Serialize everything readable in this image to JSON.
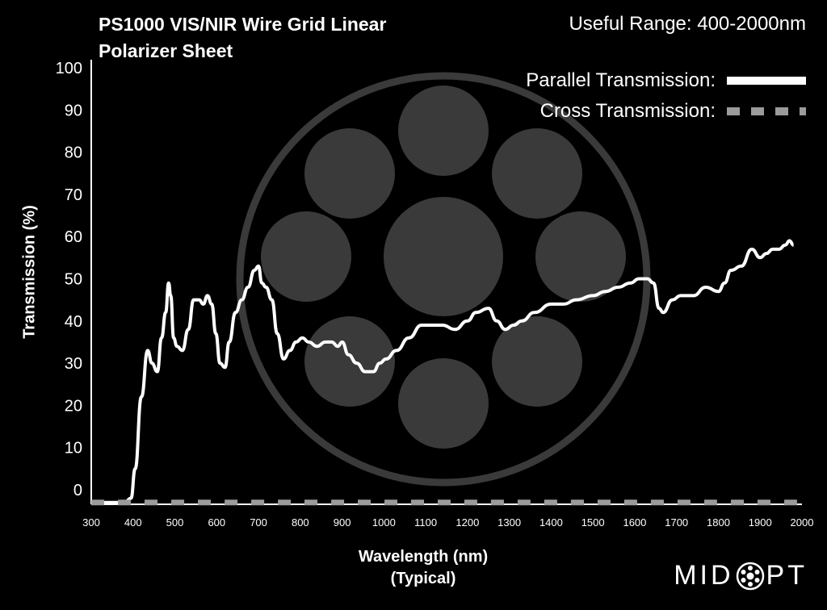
{
  "header": {
    "title_line1": "PS1000 VIS/NIR Wire Grid Linear",
    "title_line2": "Polarizer Sheet",
    "useful_range": "Useful Range: 400-2000nm"
  },
  "legend": {
    "parallel_label": "Parallel Transmission:",
    "cross_label": "Cross Transmission:"
  },
  "brand": {
    "prefix": "MID",
    "suffix": "PT"
  },
  "colors": {
    "background": "#000000",
    "parallel": "#ffffff",
    "cross": "#9b9b9b",
    "watermark": "#3a3a3a"
  },
  "chart_data": {
    "type": "line",
    "title": "PS1000 VIS/NIR Wire Grid Linear Polarizer Sheet",
    "xlabel": "Wavelength (nm)",
    "xlabel_sub": "(Typical)",
    "ylabel": "Transmission (%)",
    "xlim": [
      300,
      2000
    ],
    "ylim": [
      -3,
      100
    ],
    "xticks": [
      300,
      400,
      500,
      600,
      700,
      800,
      900,
      1000,
      1100,
      1200,
      1300,
      1400,
      1500,
      1600,
      1700,
      1800,
      1900,
      2000
    ],
    "yticks": [
      0,
      10,
      20,
      30,
      40,
      50,
      60,
      70,
      80,
      90,
      100
    ],
    "grid": false,
    "legend_position": "top-right",
    "series": [
      {
        "name": "Parallel Transmission",
        "style": "solid",
        "x": [
          300,
          380,
          395,
          405,
          420,
          435,
          445,
          458,
          468,
          478,
          485,
          490,
          497,
          505,
          518,
          532,
          545,
          558,
          568,
          578,
          588,
          598,
          608,
          620,
          630,
          645,
          660,
          675,
          690,
          700,
          708,
          718,
          732,
          745,
          760,
          775,
          790,
          805,
          820,
          840,
          860,
          875,
          890,
          900,
          915,
          935,
          955,
          975,
          990,
          1005,
          1030,
          1060,
          1090,
          1110,
          1140,
          1170,
          1200,
          1220,
          1250,
          1270,
          1290,
          1310,
          1330,
          1360,
          1400,
          1430,
          1460,
          1500,
          1530,
          1560,
          1590,
          1610,
          1630,
          1645,
          1658,
          1668,
          1690,
          1710,
          1740,
          1770,
          1800,
          1815,
          1830,
          1855,
          1880,
          1900,
          1915,
          1930,
          1945,
          1960,
          1970,
          1980
        ],
        "values": [
          -3,
          -3,
          -2,
          5,
          22,
          33,
          30,
          28,
          36,
          42,
          49,
          46,
          36,
          34,
          33,
          38,
          45,
          45,
          44,
          46,
          44,
          37,
          30,
          29,
          35,
          42,
          45,
          48,
          52,
          53,
          49,
          48,
          45,
          37,
          31,
          33,
          35,
          36,
          35,
          34,
          35,
          35,
          34,
          35,
          32,
          30,
          28,
          28,
          30,
          31,
          33,
          36,
          39,
          39,
          39,
          38,
          40,
          42,
          43,
          40,
          38,
          39,
          40,
          42,
          44,
          44,
          45,
          46,
          47,
          48,
          49,
          50,
          50,
          49,
          43,
          42,
          45,
          46,
          46,
          48,
          47,
          49,
          52,
          53,
          57,
          55,
          56,
          57,
          57,
          58,
          59,
          58
        ]
      },
      {
        "name": "Cross Transmission",
        "style": "dashed",
        "x": [
          300,
          1750,
          1800,
          1850,
          1900,
          1950,
          2000
        ],
        "values": [
          -3,
          -3,
          -3,
          -3,
          -3,
          -3,
          -3
        ]
      }
    ]
  }
}
